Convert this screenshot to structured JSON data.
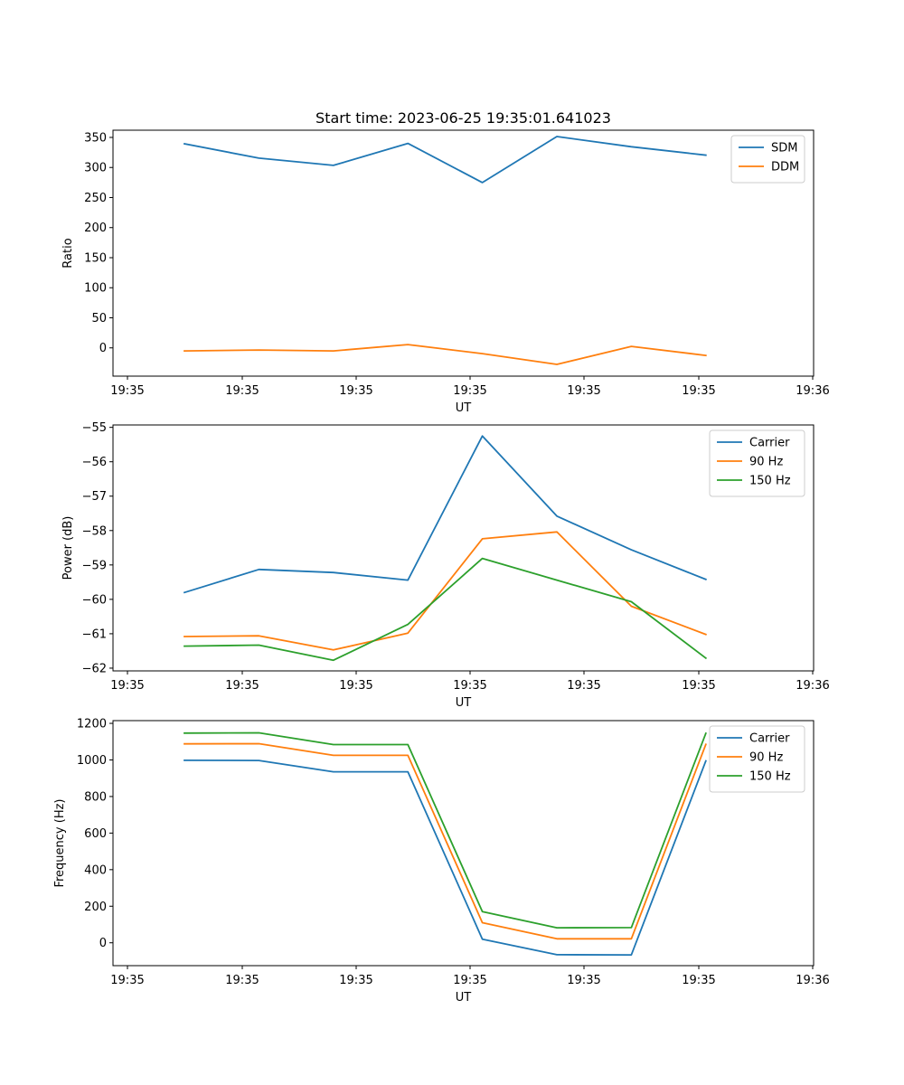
{
  "figure_title": "Start time: 2023-06-25 19:35:01.641023",
  "colors": {
    "blue": "#1f77b4",
    "orange": "#ff7f0e",
    "green": "#2ca02c"
  },
  "chart_data": [
    {
      "type": "line",
      "title": "Start time: 2023-06-25 19:35:01.641023",
      "xlabel": "UT",
      "ylabel": "Ratio",
      "x_tick_labels": [
        "19:35",
        "19:35",
        "19:35",
        "19:35",
        "19:35",
        "19:35",
        "19:35"
      ],
      "x_tick_last_label": "19:36",
      "ylim": [
        -47,
        362
      ],
      "yticks": [
        0,
        50,
        100,
        150,
        200,
        250,
        300,
        350
      ],
      "legend_loc": "upper right",
      "x": [
        1,
        2,
        3,
        4,
        5,
        6,
        7,
        8
      ],
      "series": [
        {
          "name": "SDM",
          "color": "#1f77b4",
          "values": [
            339.5,
            315.5,
            303.5,
            340,
            275,
            351.5,
            334.5,
            320.5
          ]
        },
        {
          "name": "DDM",
          "color": "#ff7f0e",
          "values": [
            -5,
            -3.5,
            -5,
            5.5,
            -9.5,
            -27.5,
            2.5,
            -12.5
          ]
        }
      ]
    },
    {
      "type": "line",
      "title": "",
      "xlabel": "UT",
      "ylabel": "Power (dB)",
      "x_tick_labels": [
        "19:35",
        "19:35",
        "19:35",
        "19:35",
        "19:35",
        "19:35",
        "19:35"
      ],
      "x_tick_last_label": "19:36",
      "ylim": [
        -62.08,
        -54.93
      ],
      "yticks": [
        -62,
        -61,
        -60,
        -59,
        -58,
        -57,
        -56,
        -55
      ],
      "legend_loc": "upper right",
      "x": [
        1,
        2,
        3,
        4,
        5,
        6,
        7,
        8
      ],
      "series": [
        {
          "name": "Carrier",
          "color": "#1f77b4",
          "values": [
            -59.8,
            -59.13,
            -59.22,
            -59.44,
            -55.25,
            -57.58,
            -58.56,
            -59.42
          ]
        },
        {
          "name": "90 Hz",
          "color": "#ff7f0e",
          "values": [
            -61.08,
            -61.06,
            -61.47,
            -60.98,
            -58.24,
            -58.04,
            -60.2,
            -61.02
          ]
        },
        {
          "name": "150 Hz",
          "color": "#2ca02c",
          "values": [
            -61.36,
            -61.33,
            -61.77,
            -60.73,
            -58.81,
            -59.44,
            -60.07,
            -61.71
          ]
        }
      ]
    },
    {
      "type": "line",
      "title": "",
      "xlabel": "UT",
      "ylabel": "Frequency (Hz)",
      "x_tick_labels": [
        "19:35",
        "19:35",
        "19:35",
        "19:35",
        "19:35",
        "19:35",
        "19:35"
      ],
      "x_tick_last_label": "19:36",
      "ylim": [
        -125,
        1215
      ],
      "yticks": [
        0,
        200,
        400,
        600,
        800,
        1000,
        1200
      ],
      "legend_loc": "upper right",
      "x": [
        1,
        2,
        3,
        4,
        5,
        6,
        7,
        8
      ],
      "series": [
        {
          "name": "Carrier",
          "color": "#1f77b4",
          "values": [
            998,
            997,
            935,
            935,
            20,
            -65,
            -66,
            995
          ]
        },
        {
          "name": "90 Hz",
          "color": "#ff7f0e",
          "values": [
            1088,
            1089,
            1025,
            1025,
            110,
            22,
            22,
            1085
          ]
        },
        {
          "name": "150 Hz",
          "color": "#2ca02c",
          "values": [
            1147,
            1148,
            1084,
            1084,
            170,
            82,
            83,
            1146
          ]
        }
      ]
    }
  ]
}
